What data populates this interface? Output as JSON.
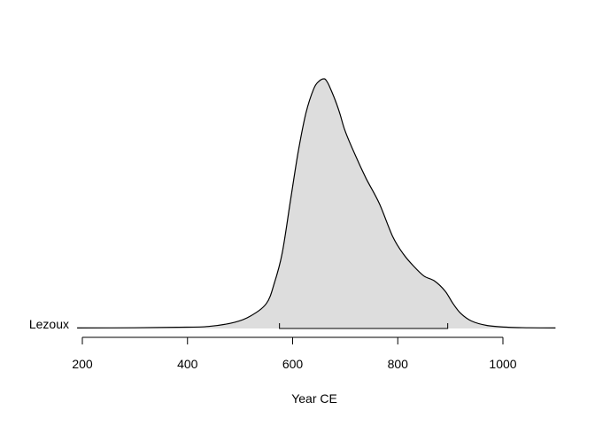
{
  "chart_data": {
    "type": "area",
    "series_label": "Lezoux",
    "xlabel": "Year CE",
    "ylabel": "",
    "xlim": [
      190,
      1100
    ],
    "x_ticks": [
      200,
      400,
      600,
      800,
      1000
    ],
    "fill_color": "#dddddd",
    "line_color": "#000000",
    "interval": [
      575,
      895
    ],
    "density": {
      "x": [
        190,
        300,
        380,
        440,
        490,
        520,
        550,
        565,
        580,
        595,
        610,
        625,
        640,
        650,
        660,
        665,
        670,
        680,
        690,
        700,
        720,
        740,
        765,
        790,
        810,
        830,
        850,
        870,
        890,
        905,
        920,
        940,
        970,
        1010,
        1050,
        1100
      ],
      "y": [
        0.002,
        0.003,
        0.005,
        0.008,
        0.025,
        0.05,
        0.1,
        0.18,
        0.3,
        0.5,
        0.7,
        0.86,
        0.96,
        0.99,
        1.0,
        0.99,
        0.97,
        0.92,
        0.86,
        0.79,
        0.69,
        0.6,
        0.5,
        0.37,
        0.3,
        0.25,
        0.21,
        0.19,
        0.15,
        0.1,
        0.06,
        0.03,
        0.012,
        0.005,
        0.003,
        0.002
      ]
    }
  }
}
